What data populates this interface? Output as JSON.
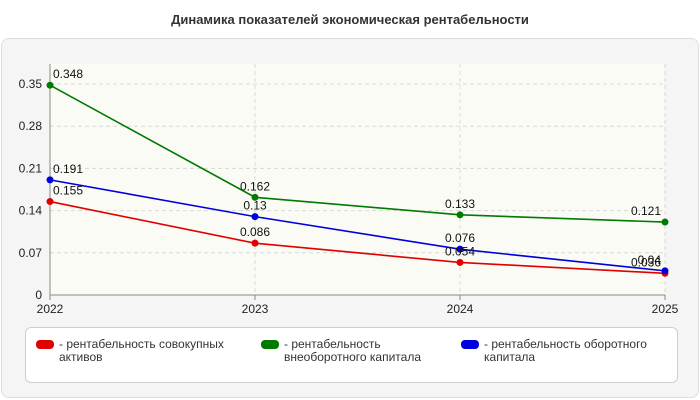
{
  "chart_data": {
    "type": "line",
    "title": "Динамика показателей экономическая рентабельности",
    "xlabel": "",
    "ylabel": "",
    "x": [
      "2022",
      "2023",
      "2024",
      "2025"
    ],
    "ylim": [
      0,
      0.35
    ],
    "yticks": [
      "0",
      "0.07",
      "0.14",
      "0.21",
      "0.28",
      "0.35"
    ],
    "ytick_values": [
      0,
      0.07,
      0.14,
      0.21,
      0.28,
      0.35
    ],
    "grid": true,
    "legend_position": "bottom",
    "series": [
      {
        "name": "- рентабельность совокупных активов",
        "color": "#e00000",
        "values": [
          0.155,
          0.086,
          0.054,
          0.036
        ],
        "labels": [
          "0.155",
          "0.086",
          "0.054",
          "0.036"
        ]
      },
      {
        "name": "- рентабельность внеоборотного капитала",
        "color": "#007a00",
        "values": [
          0.348,
          0.162,
          0.133,
          0.121
        ],
        "labels": [
          "0.348",
          "0.162",
          "0.133",
          "0.121"
        ]
      },
      {
        "name": "- рентабельность оборотного капитала",
        "color": "#0000dd",
        "values": [
          0.191,
          0.13,
          0.076,
          0.04
        ],
        "labels": [
          "0.191",
          "0.13",
          "0.076",
          "0.04"
        ]
      }
    ]
  }
}
